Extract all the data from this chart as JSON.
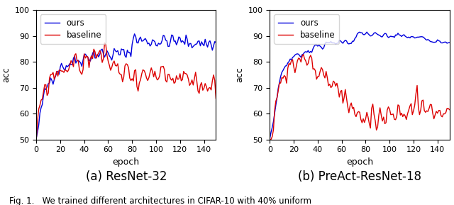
{
  "subplot1_title": "(a) ResNet-32",
  "subplot2_title": "(b) PreAct-ResNet-18",
  "fig_caption": "Fig. 1.   We trained different architectures in CIFAR-10 with 40% uniform",
  "xlabel": "epoch",
  "ylabel": "acc",
  "ylim": [
    50,
    100
  ],
  "xlim": [
    0,
    150
  ],
  "xticks": [
    0,
    20,
    40,
    60,
    80,
    100,
    120,
    140
  ],
  "yticks": [
    50,
    60,
    70,
    80,
    90,
    100
  ],
  "legend_labels": [
    "ours",
    "baseline"
  ],
  "blue_color": "#0000dd",
  "red_color": "#dd0000",
  "linewidth": 1.0,
  "figsize": [
    6.4,
    2.89
  ],
  "dpi": 100
}
